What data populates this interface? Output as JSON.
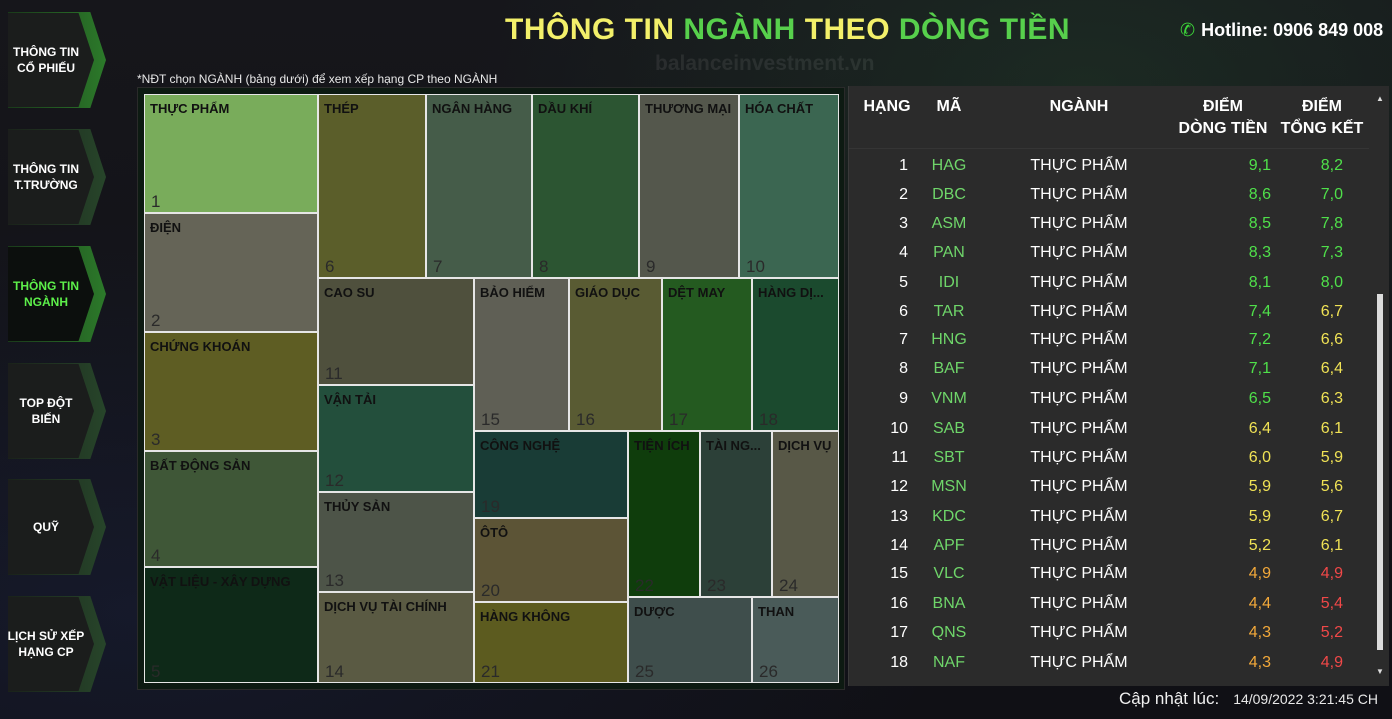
{
  "header": {
    "title_part1": "THÔNG TIN",
    "title_part2": "NGÀNH",
    "title_part3": "THEO",
    "title_part4": "DÒNG TIỀN",
    "watermark": "balanceinvestment.vn",
    "hotline_label": "Hotline: 0906 849 008",
    "phone_icon": "phone-icon"
  },
  "nav": {
    "items": [
      {
        "label": "THÔNG TIN CỔ PHIẾU"
      },
      {
        "label": "THÔNG TIN T.TRƯỜNG"
      },
      {
        "label": "THÔNG TIN NGÀNH"
      },
      {
        "label": "TOP ĐỘT BIẾN"
      },
      {
        "label": "QUỸ"
      },
      {
        "label": "LỊCH SỬ XẾP HẠNG CP"
      }
    ],
    "active_index": 2
  },
  "note": "*NĐT chọn NGÀNH (bảng dưới) để xem xếp hạng CP theo NGÀNH",
  "treemap": {
    "tiles": [
      {
        "name": "THỰC PHẨM",
        "no": "1",
        "color": "#79ac5b"
      },
      {
        "name": "ĐIỆN",
        "no": "2",
        "color": "#656457"
      },
      {
        "name": "CHỨNG KHOÁN",
        "no": "3",
        "color": "#5e5d23"
      },
      {
        "name": "BẤT ĐỘNG SẢN",
        "no": "4",
        "color": "#3f5737"
      },
      {
        "name": "VẬT LIỆU - XÂY DỰNG",
        "no": "5",
        "color": "#0e2918"
      },
      {
        "name": "THÉP",
        "no": "6",
        "color": "#5b5e2a"
      },
      {
        "name": "NGÂN HÀNG",
        "no": "7",
        "color": "#455c49"
      },
      {
        "name": "DẦU KHÍ",
        "no": "8",
        "color": "#2c5532"
      },
      {
        "name": "THƯƠNG MẠI",
        "no": "9",
        "color": "#54574c"
      },
      {
        "name": "HÓA CHẤT",
        "no": "10",
        "color": "#3b6651"
      },
      {
        "name": "CAO SU",
        "no": "11",
        "color": "#4f503d"
      },
      {
        "name": "BẢO HIỂM",
        "no": "15",
        "color": "#5f5f55"
      },
      {
        "name": "GIÁO DỤC",
        "no": "16",
        "color": "#595b33"
      },
      {
        "name": "DỆT MAY",
        "no": "17",
        "color": "#245a20"
      },
      {
        "name": "HÀNG DỊ...",
        "no": "18",
        "color": "#1b4a2e"
      },
      {
        "name": "VẬN TẢI",
        "no": "12",
        "color": "#234f3c"
      },
      {
        "name": "THỦY SẢN",
        "no": "13",
        "color": "#4d5448"
      },
      {
        "name": "DỊCH VỤ TÀI CHÍNH",
        "no": "14",
        "color": "#5a5a43"
      },
      {
        "name": "CÔNG NGHỆ",
        "no": "19",
        "color": "#193c36"
      },
      {
        "name": "ÔTÔ",
        "no": "20",
        "color": "#5c5436"
      },
      {
        "name": "HÀNG KHÔNG",
        "no": "21",
        "color": "#5c5b1f"
      },
      {
        "name": "TIỆN ÍCH",
        "no": "22",
        "color": "#0f3d0c"
      },
      {
        "name": "TÀI NG...",
        "no": "23",
        "color": "#2c4038"
      },
      {
        "name": "DỊCH VỤ",
        "no": "24",
        "color": "#585847"
      },
      {
        "name": "DƯỢC",
        "no": "25",
        "color": "#3f4e4c"
      },
      {
        "name": "THAN",
        "no": "26",
        "color": "#4a5b59"
      }
    ]
  },
  "table": {
    "headers": {
      "rank": "HẠNG",
      "code": "MÃ",
      "industry": "NGÀNH",
      "cashflow_1": "ĐIỂM",
      "cashflow_2": "DÒNG TIỀN",
      "total_1": "ĐIỂM",
      "total_2": "TỔNG KẾT"
    },
    "rows": [
      {
        "rank": "1",
        "code": "HAG",
        "industry": "THỰC PHẨM",
        "cashflow": "9,1",
        "total": "8,2",
        "cf_color": "#4fe04a",
        "tk_color": "#4fe04a"
      },
      {
        "rank": "2",
        "code": "DBC",
        "industry": "THỰC PHẨM",
        "cashflow": "8,6",
        "total": "7,0",
        "cf_color": "#4fe04a",
        "tk_color": "#4fe04a"
      },
      {
        "rank": "3",
        "code": "ASM",
        "industry": "THỰC PHẨM",
        "cashflow": "8,5",
        "total": "7,8",
        "cf_color": "#4fe04a",
        "tk_color": "#4fe04a"
      },
      {
        "rank": "4",
        "code": "PAN",
        "industry": "THỰC PHẨM",
        "cashflow": "8,3",
        "total": "7,3",
        "cf_color": "#4fe04a",
        "tk_color": "#4fe04a"
      },
      {
        "rank": "5",
        "code": "IDI",
        "industry": "THỰC PHẨM",
        "cashflow": "8,1",
        "total": "8,0",
        "cf_color": "#4fe04a",
        "tk_color": "#4fe04a"
      },
      {
        "rank": "6",
        "code": "TAR",
        "industry": "THỰC PHẨM",
        "cashflow": "7,4",
        "total": "6,7",
        "cf_color": "#4fe04a",
        "tk_color": "#f0e255"
      },
      {
        "rank": "7",
        "code": "HNG",
        "industry": "THỰC PHẨM",
        "cashflow": "7,2",
        "total": "6,6",
        "cf_color": "#4fe04a",
        "tk_color": "#f0e255"
      },
      {
        "rank": "8",
        "code": "BAF",
        "industry": "THỰC PHẨM",
        "cashflow": "7,1",
        "total": "6,4",
        "cf_color": "#4fe04a",
        "tk_color": "#f0e255"
      },
      {
        "rank": "9",
        "code": "VNM",
        "industry": "THỰC PHẨM",
        "cashflow": "6,5",
        "total": "6,3",
        "cf_color": "#4fe04a",
        "tk_color": "#f0e255"
      },
      {
        "rank": "10",
        "code": "SAB",
        "industry": "THỰC PHẨM",
        "cashflow": "6,4",
        "total": "6,1",
        "cf_color": "#f0e255",
        "tk_color": "#f0e255"
      },
      {
        "rank": "11",
        "code": "SBT",
        "industry": "THỰC PHẨM",
        "cashflow": "6,0",
        "total": "5,9",
        "cf_color": "#f0e255",
        "tk_color": "#f0e255"
      },
      {
        "rank": "12",
        "code": "MSN",
        "industry": "THỰC PHẨM",
        "cashflow": "5,9",
        "total": "5,6",
        "cf_color": "#f0e255",
        "tk_color": "#f0e255"
      },
      {
        "rank": "13",
        "code": "KDC",
        "industry": "THỰC PHẨM",
        "cashflow": "5,9",
        "total": "6,7",
        "cf_color": "#f0e255",
        "tk_color": "#f0e255"
      },
      {
        "rank": "14",
        "code": "APF",
        "industry": "THỰC PHẨM",
        "cashflow": "5,2",
        "total": "6,1",
        "cf_color": "#f0e255",
        "tk_color": "#f0e255"
      },
      {
        "rank": "15",
        "code": "VLC",
        "industry": "THỰC PHẨM",
        "cashflow": "4,9",
        "total": "4,9",
        "cf_color": "#f3a93a",
        "tk_color": "#f04848"
      },
      {
        "rank": "16",
        "code": "BNA",
        "industry": "THỰC PHẨM",
        "cashflow": "4,4",
        "total": "5,4",
        "cf_color": "#f3a93a",
        "tk_color": "#f04848"
      },
      {
        "rank": "17",
        "code": "QNS",
        "industry": "THỰC PHẨM",
        "cashflow": "4,3",
        "total": "5,2",
        "cf_color": "#f3a93a",
        "tk_color": "#f04848"
      },
      {
        "rank": "18",
        "code": "NAF",
        "industry": "THỰC PHẨM",
        "cashflow": "4,3",
        "total": "4,9",
        "cf_color": "#f3a93a",
        "tk_color": "#f04848"
      }
    ]
  },
  "footer": {
    "updated_label": "Cập nhật lúc:",
    "updated_time": "14/09/2022 3:21:45 CH"
  }
}
